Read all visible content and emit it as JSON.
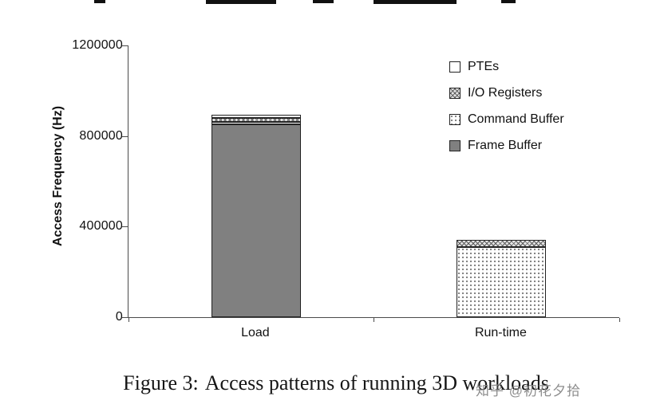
{
  "page": {
    "background": "#ffffff"
  },
  "figure": {
    "caption_prefix": "Figure 3:",
    "caption_text": "Access patterns of running 3D workloads",
    "watermark": "知乎 @初花夕拾"
  },
  "chart_data": {
    "type": "bar",
    "stacked": true,
    "title": "",
    "xlabel": "",
    "ylabel": "Access Frequency (Hz)",
    "ylim": [
      0,
      1200000
    ],
    "yticks": [
      0,
      400000,
      800000,
      1200000
    ],
    "categories": [
      "Load",
      "Run-time"
    ],
    "series": [
      {
        "name": "Frame Buffer",
        "style": "solid-gray",
        "values": [
          850000,
          0
        ]
      },
      {
        "name": "Command Buffer",
        "style": "dots",
        "values": [
          10000,
          310000
        ]
      },
      {
        "name": "I/O Registers",
        "style": "crosshatch",
        "values": [
          18000,
          30000
        ]
      },
      {
        "name": "PTEs",
        "style": "white",
        "values": [
          17000,
          0
        ]
      }
    ],
    "legend": [
      "PTEs",
      "I/O Registers",
      "Command Buffer",
      "Frame Buffer"
    ],
    "legend_position": "inside-upper-right",
    "grid": false,
    "colors": {
      "frame_buffer": "#808080",
      "axis": "#4a4a4a",
      "text": "#111111"
    }
  }
}
